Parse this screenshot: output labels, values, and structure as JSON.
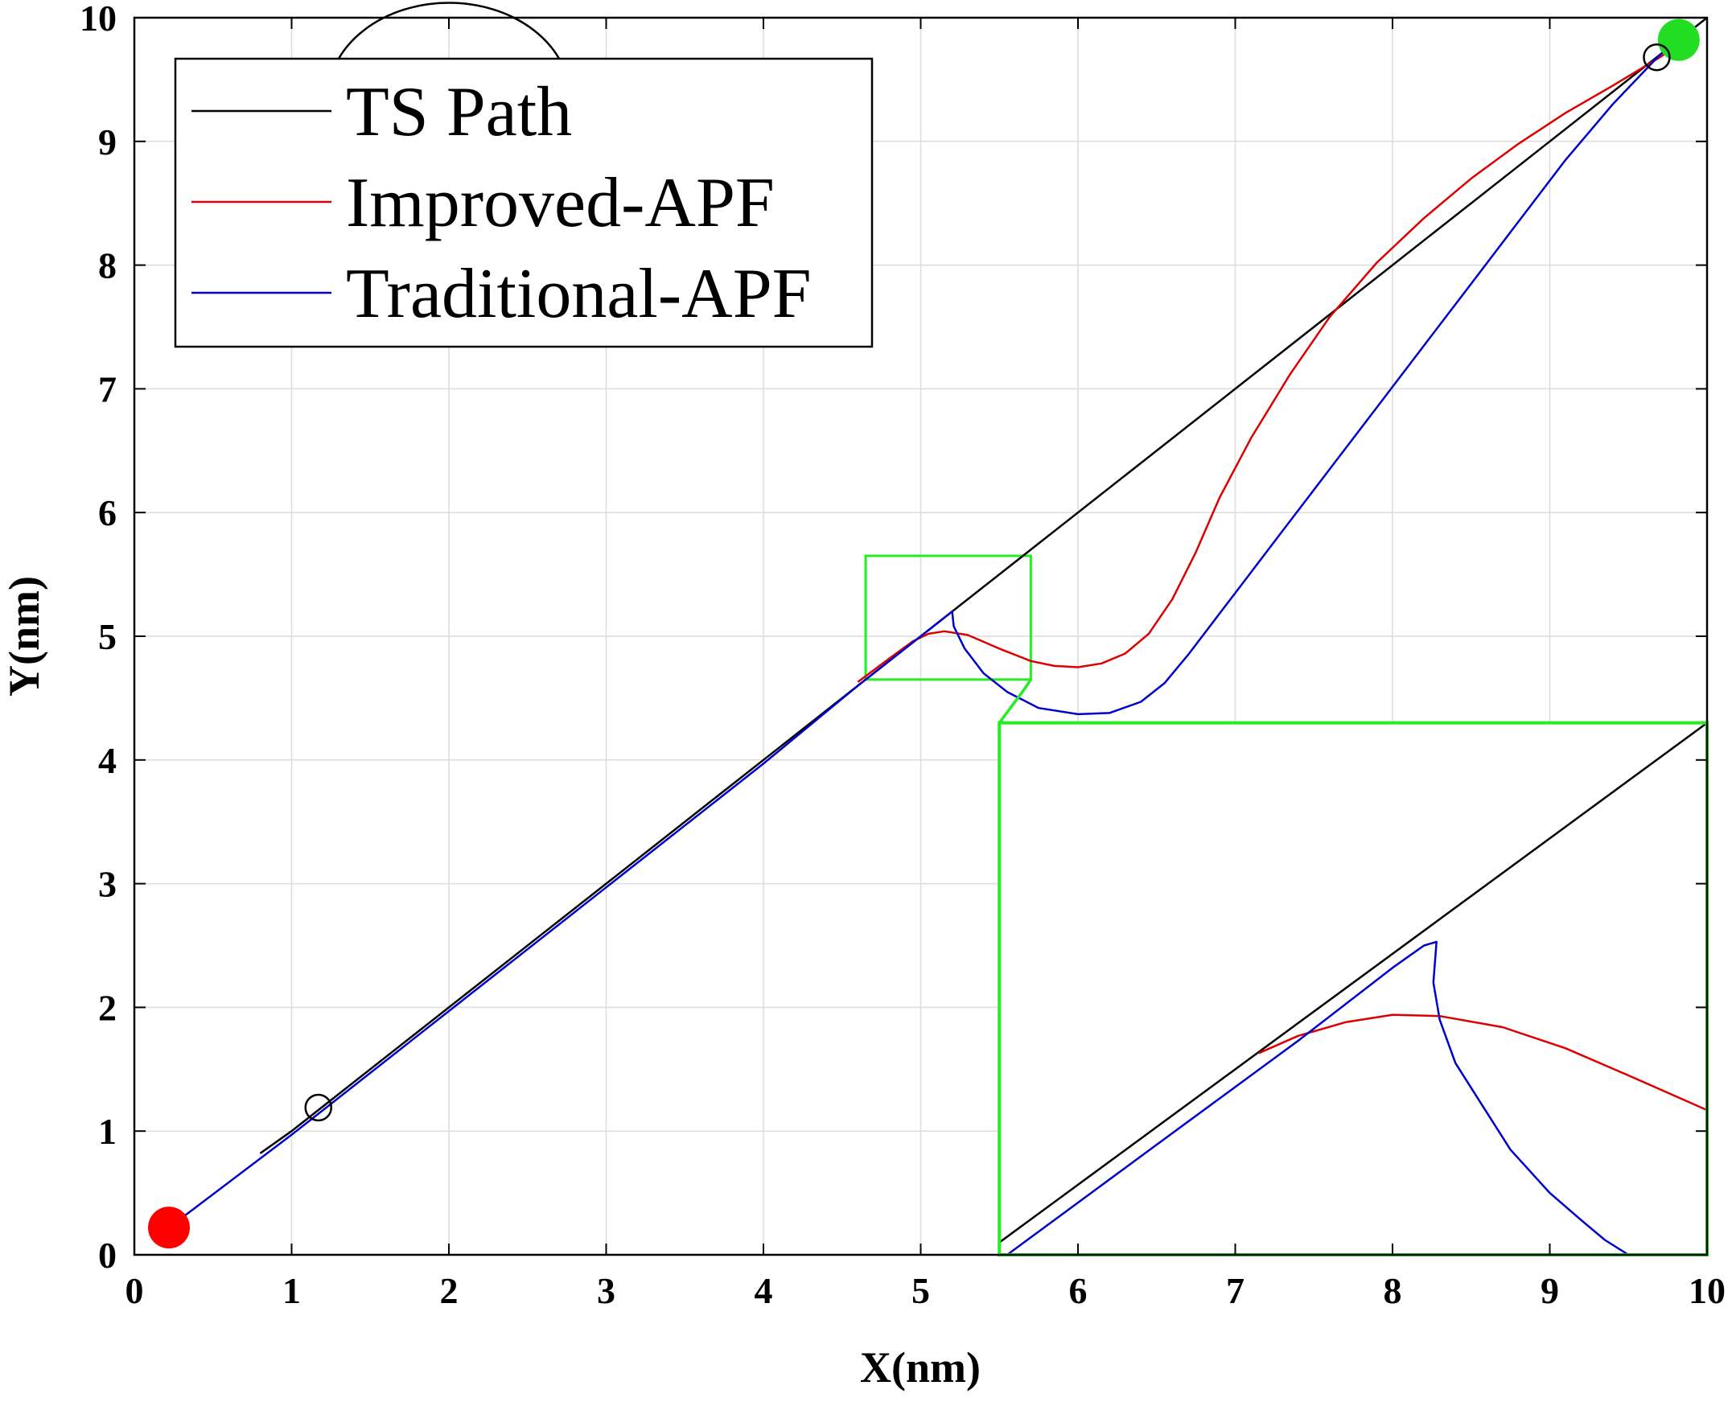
{
  "chart_data": {
    "type": "line",
    "xlabel": "X(nm)",
    "ylabel": "Y(nm)",
    "xlim": [
      0,
      10
    ],
    "ylim": [
      0,
      10
    ],
    "xticks": [
      "0",
      "1",
      "2",
      "3",
      "4",
      "5",
      "6",
      "7",
      "8",
      "9",
      "10"
    ],
    "yticks": [
      "0",
      "1",
      "2",
      "3",
      "4",
      "5",
      "6",
      "7",
      "8",
      "9",
      "10"
    ],
    "grid": true,
    "legend_position": "top-left",
    "series": [
      {
        "name": "TS Path",
        "color": "#000000",
        "points": [
          [
            0.8,
            0.82
          ],
          [
            1.0,
            1.0
          ],
          [
            2.0,
            2.0
          ],
          [
            3.0,
            3.0
          ],
          [
            4.0,
            4.0
          ],
          [
            5.0,
            5.0
          ],
          [
            6.0,
            6.0
          ],
          [
            7.0,
            7.0
          ],
          [
            8.0,
            8.0
          ],
          [
            9.0,
            9.0
          ],
          [
            9.7,
            9.7
          ],
          [
            10.0,
            10.0
          ]
        ]
      },
      {
        "name": "Improved-APF",
        "color": "#dd0000",
        "points": [
          [
            4.6,
            4.63
          ],
          [
            4.8,
            4.82
          ],
          [
            4.95,
            4.96
          ],
          [
            5.05,
            5.02
          ],
          [
            5.15,
            5.04
          ],
          [
            5.3,
            5.01
          ],
          [
            5.5,
            4.9
          ],
          [
            5.7,
            4.8
          ],
          [
            5.85,
            4.76
          ],
          [
            6.0,
            4.75
          ],
          [
            6.15,
            4.78
          ],
          [
            6.3,
            4.86
          ],
          [
            6.45,
            5.02
          ],
          [
            6.6,
            5.3
          ],
          [
            6.75,
            5.68
          ],
          [
            6.9,
            6.12
          ],
          [
            7.1,
            6.6
          ],
          [
            7.35,
            7.12
          ],
          [
            7.6,
            7.58
          ],
          [
            7.9,
            8.02
          ],
          [
            8.2,
            8.38
          ],
          [
            8.5,
            8.7
          ],
          [
            8.8,
            8.98
          ],
          [
            9.1,
            9.23
          ],
          [
            9.4,
            9.45
          ],
          [
            9.7,
            9.68
          ],
          [
            9.82,
            9.78
          ]
        ]
      },
      {
        "name": "Traditional-APF",
        "color": "#0000cc",
        "points": [
          [
            0.22,
            0.22
          ],
          [
            1.0,
            0.97
          ],
          [
            2.0,
            1.97
          ],
          [
            3.0,
            2.97
          ],
          [
            4.0,
            3.97
          ],
          [
            4.6,
            4.6
          ],
          [
            4.9,
            4.9
          ],
          [
            5.1,
            5.1
          ],
          [
            5.2,
            5.2
          ],
          [
            5.21,
            5.08
          ],
          [
            5.28,
            4.9
          ],
          [
            5.4,
            4.7
          ],
          [
            5.55,
            4.55
          ],
          [
            5.75,
            4.42
          ],
          [
            6.0,
            4.37
          ],
          [
            6.2,
            4.38
          ],
          [
            6.4,
            4.47
          ],
          [
            6.55,
            4.62
          ],
          [
            6.7,
            4.85
          ],
          [
            7.0,
            5.35
          ],
          [
            7.3,
            5.85
          ],
          [
            7.6,
            6.35
          ],
          [
            7.9,
            6.85
          ],
          [
            8.2,
            7.35
          ],
          [
            8.5,
            7.85
          ],
          [
            8.8,
            8.35
          ],
          [
            9.1,
            8.85
          ],
          [
            9.4,
            9.3
          ],
          [
            9.7,
            9.7
          ],
          [
            9.8,
            9.8
          ]
        ]
      }
    ],
    "markers": [
      {
        "name": "start-point",
        "x": 0.22,
        "y": 0.22,
        "color": "#ff0000",
        "filled": true
      },
      {
        "name": "goal-point",
        "x": 9.82,
        "y": 9.82,
        "color": "#22dd22",
        "filled": true
      },
      {
        "name": "ts-path-waypoint-start",
        "x": 1.17,
        "y": 1.19,
        "color": "#000000",
        "filled": false
      },
      {
        "name": "ts-path-waypoint-end",
        "x": 9.68,
        "y": 9.68,
        "color": "#000000",
        "filled": false
      }
    ],
    "obstacle_arc": {
      "cx": 2.0,
      "cy": 9.35,
      "r": 0.77
    },
    "zoom_region": {
      "x": [
        4.65,
        5.7
      ],
      "y": [
        4.65,
        5.65
      ]
    },
    "zoom_inset": {
      "x": [
        5.5,
        10.0
      ],
      "y": [
        0.0,
        4.3
      ],
      "color": "#22ee22",
      "series": [
        {
          "name": "TS Path",
          "color": "#000000",
          "points": [
            [
              5.5,
              0.1
            ],
            [
              10.0,
              4.3
            ]
          ]
        },
        {
          "name": "Improved-APF",
          "color": "#dd0000",
          "points": [
            [
              7.15,
              1.63
            ],
            [
              7.4,
              1.77
            ],
            [
              7.7,
              1.88
            ],
            [
              8.0,
              1.94
            ],
            [
              8.3,
              1.93
            ],
            [
              8.7,
              1.84
            ],
            [
              9.1,
              1.67
            ],
            [
              9.5,
              1.45
            ],
            [
              10.0,
              1.17
            ]
          ]
        },
        {
          "name": "Traditional-APF",
          "color": "#0000cc",
          "points": [
            [
              5.55,
              0.0
            ],
            [
              6.5,
              0.89
            ],
            [
              7.4,
              1.73
            ],
            [
              8.0,
              2.32
            ],
            [
              8.2,
              2.5
            ],
            [
              8.28,
              2.53
            ],
            [
              8.26,
              2.2
            ],
            [
              8.3,
              1.9
            ],
            [
              8.4,
              1.55
            ],
            [
              8.55,
              1.25
            ],
            [
              8.75,
              0.85
            ],
            [
              9.0,
              0.5
            ],
            [
              9.2,
              0.28
            ],
            [
              9.35,
              0.12
            ],
            [
              9.5,
              0.0
            ]
          ]
        }
      ]
    }
  }
}
